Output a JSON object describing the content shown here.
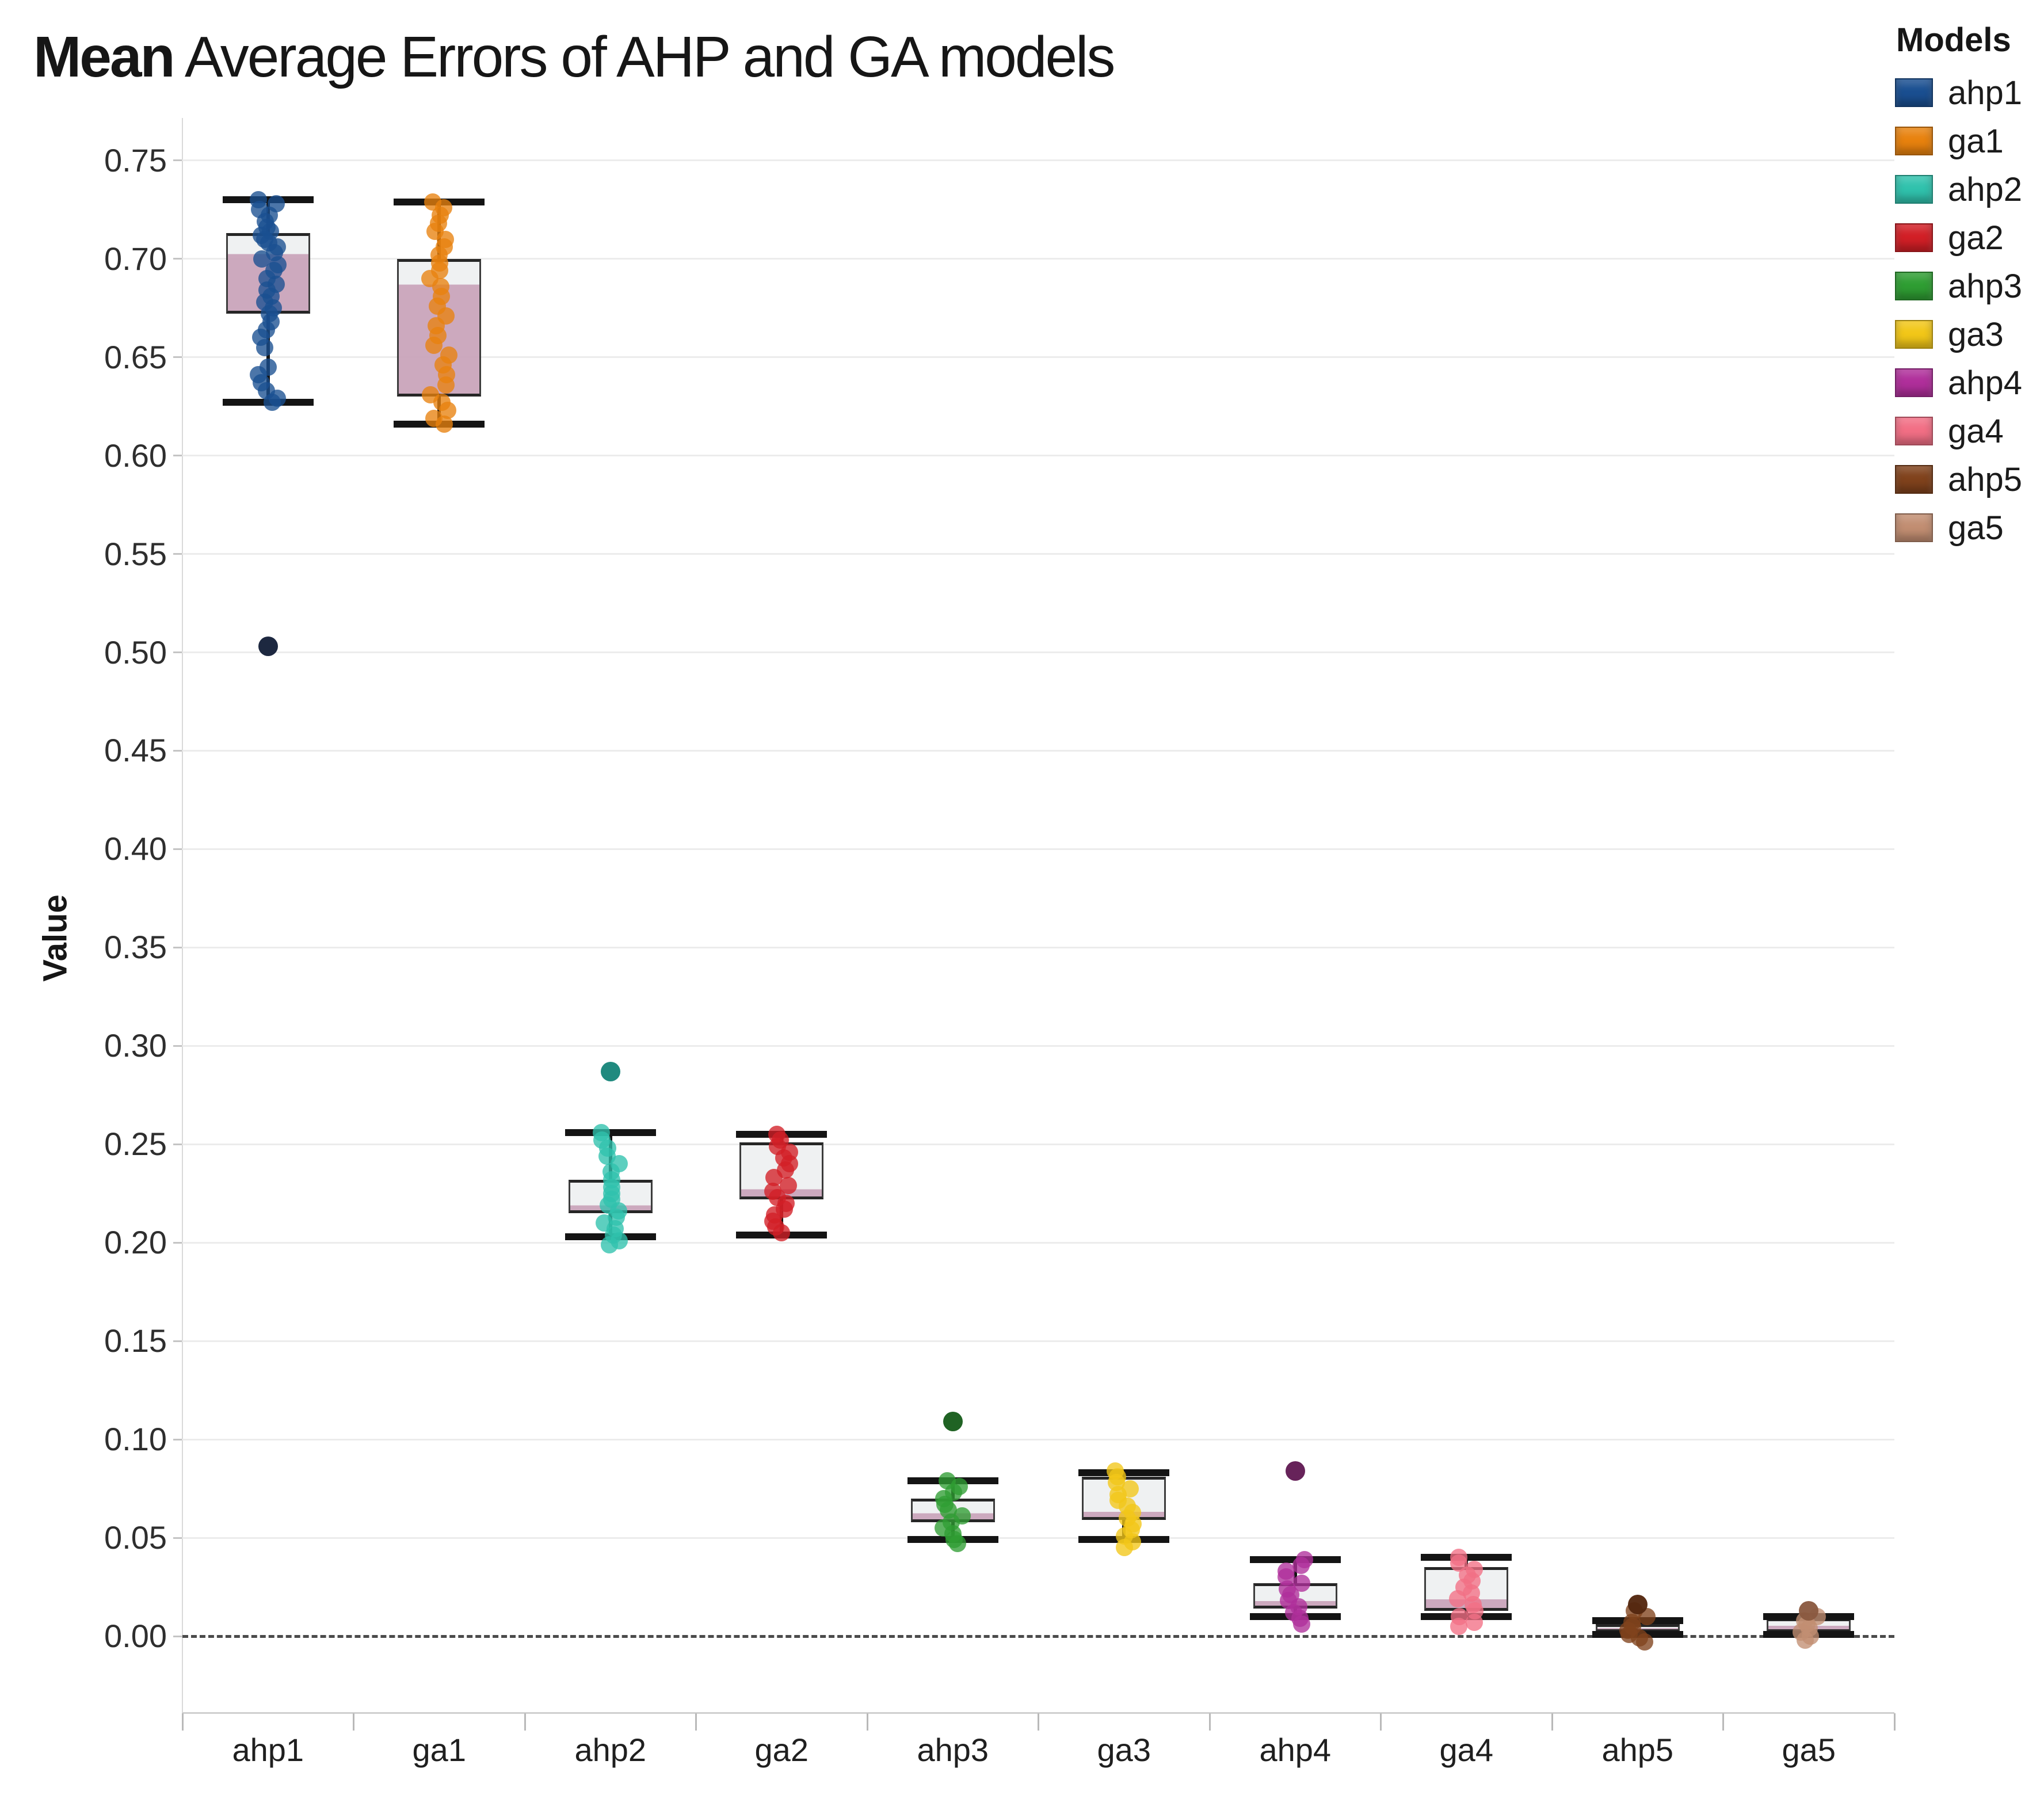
{
  "title": {
    "lead": "Mean",
    "rest": " Average Errors of AHP and GA models"
  },
  "y_axis": {
    "label": "Value",
    "ticks": [
      "0.00",
      "0.05",
      "0.10",
      "0.15",
      "0.20",
      "0.25",
      "0.30",
      "0.35",
      "0.40",
      "0.45",
      "0.50",
      "0.55",
      "0.60",
      "0.65",
      "0.70",
      "0.75"
    ]
  },
  "legend": {
    "title": "Models",
    "items": [
      {
        "label": "ahp1",
        "color": "#1a4f91"
      },
      {
        "label": "ga1",
        "color": "#e8820e"
      },
      {
        "label": "ahp2",
        "color": "#30c2ad"
      },
      {
        "label": "ga2",
        "color": "#d21f26"
      },
      {
        "label": "ahp3",
        "color": "#2f9e33"
      },
      {
        "label": "ga3",
        "color": "#f2c718"
      },
      {
        "label": "ahp4",
        "color": "#b02f9b"
      },
      {
        "label": "ga4",
        "color": "#f26f85"
      },
      {
        "label": "ahp5",
        "color": "#80421c"
      },
      {
        "label": "ga5",
        "color": "#c28e72"
      }
    ]
  },
  "chart_data": {
    "type": "box",
    "title": "Mean Average Errors of AHP and GA models",
    "ylabel": "Value",
    "ylim": [
      -0.04,
      0.77
    ],
    "grid_step": 0.05,
    "zero_line_value": 0.0,
    "legend_position": "top-right",
    "box_fill_upper": "#eef0f2",
    "box_fill_lower": "#c9a3ba",
    "categories": [
      "ahp1",
      "ga1",
      "ahp2",
      "ga2",
      "ahp3",
      "ga3",
      "ahp4",
      "ga4",
      "ahp5",
      "ga5"
    ],
    "series": [
      {
        "name": "ahp1",
        "color": "#1a4f91",
        "dark": "#141f38",
        "whisker_low": 0.627,
        "q1": 0.672,
        "median": 0.703,
        "q3": 0.713,
        "whisker_high": 0.73,
        "outliers": [
          0.503
        ],
        "points": [
          0.73,
          0.728,
          0.725,
          0.722,
          0.719,
          0.716,
          0.714,
          0.712,
          0.71,
          0.708,
          0.706,
          0.703,
          0.7,
          0.697,
          0.694,
          0.69,
          0.687,
          0.684,
          0.681,
          0.678,
          0.675,
          0.672,
          0.668,
          0.664,
          0.66,
          0.655,
          0.645,
          0.641,
          0.637,
          0.633,
          0.629,
          0.627
        ]
      },
      {
        "name": "ga1",
        "color": "#e8820e",
        "dark": "#8f4d06",
        "whisker_low": 0.616,
        "q1": 0.63,
        "median": 0.688,
        "q3": 0.7,
        "whisker_high": 0.729,
        "outliers": [],
        "points": [
          0.729,
          0.726,
          0.722,
          0.718,
          0.714,
          0.71,
          0.706,
          0.702,
          0.698,
          0.694,
          0.69,
          0.686,
          0.681,
          0.676,
          0.671,
          0.666,
          0.661,
          0.656,
          0.651,
          0.646,
          0.641,
          0.636,
          0.631,
          0.627,
          0.623,
          0.619,
          0.616
        ]
      },
      {
        "name": "ahp2",
        "color": "#30c2ad",
        "dark": "#17857a",
        "whisker_low": 0.203,
        "q1": 0.215,
        "median": 0.218,
        "q3": 0.232,
        "whisker_high": 0.256,
        "outliers": [
          0.287
        ],
        "points": [
          0.256,
          0.252,
          0.248,
          0.244,
          0.24,
          0.236,
          0.232,
          0.228,
          0.225,
          0.222,
          0.219,
          0.216,
          0.213,
          0.21,
          0.207,
          0.204,
          0.201,
          0.199
        ]
      },
      {
        "name": "ga2",
        "color": "#d21f26",
        "dark": "#7e1216",
        "whisker_low": 0.204,
        "q1": 0.222,
        "median": 0.226,
        "q3": 0.251,
        "whisker_high": 0.255,
        "outliers": [],
        "points": [
          0.255,
          0.252,
          0.249,
          0.246,
          0.243,
          0.24,
          0.237,
          0.233,
          0.229,
          0.226,
          0.223,
          0.22,
          0.217,
          0.214,
          0.211,
          0.208,
          0.205
        ]
      },
      {
        "name": "ahp3",
        "color": "#2f9e33",
        "dark": "#175d1b",
        "whisker_low": 0.049,
        "q1": 0.058,
        "median": 0.062,
        "q3": 0.07,
        "whisker_high": 0.079,
        "outliers": [
          0.109
        ],
        "points": [
          0.079,
          0.076,
          0.073,
          0.07,
          0.067,
          0.064,
          0.061,
          0.058,
          0.055,
          0.052,
          0.049,
          0.047
        ]
      },
      {
        "name": "ga3",
        "color": "#f2c718",
        "dark": "#9c7e0a",
        "whisker_low": 0.049,
        "q1": 0.059,
        "median": 0.062,
        "q3": 0.081,
        "whisker_high": 0.083,
        "outliers": [],
        "points": [
          0.084,
          0.081,
          0.078,
          0.075,
          0.072,
          0.069,
          0.066,
          0.063,
          0.06,
          0.057,
          0.054,
          0.051,
          0.048,
          0.045
        ]
      },
      {
        "name": "ahp4",
        "color": "#b02f9b",
        "dark": "#611a53",
        "whisker_low": 0.01,
        "q1": 0.014,
        "median": 0.017,
        "q3": 0.027,
        "whisker_high": 0.039,
        "outliers": [
          0.084
        ],
        "points": [
          0.039,
          0.036,
          0.033,
          0.03,
          0.027,
          0.024,
          0.021,
          0.018,
          0.015,
          0.012,
          0.009,
          0.006
        ]
      },
      {
        "name": "ga4",
        "color": "#f26f85",
        "dark": "#a63e4f",
        "whisker_low": 0.01,
        "q1": 0.013,
        "median": 0.018,
        "q3": 0.035,
        "whisker_high": 0.04,
        "outliers": [],
        "points": [
          0.04,
          0.037,
          0.034,
          0.031,
          0.028,
          0.025,
          0.022,
          0.019,
          0.016,
          0.013,
          0.01,
          0.007,
          0.005
        ]
      },
      {
        "name": "ahp5",
        "color": "#80421c",
        "dark": "#53270f",
        "whisker_low": 0.001,
        "q1": 0.002,
        "median": 0.004,
        "q3": 0.006,
        "whisker_high": 0.008,
        "outliers": [
          0.016
        ],
        "points": [
          0.013,
          0.01,
          0.007,
          0.005,
          0.003,
          0.001,
          -0.001,
          -0.003
        ]
      },
      {
        "name": "ga5",
        "color": "#c28e72",
        "dark": "#8a5a41",
        "whisker_low": 0.001,
        "q1": 0.002,
        "median": 0.005,
        "q3": 0.009,
        "whisker_high": 0.01,
        "outliers": [
          0.013
        ],
        "points": [
          0.01,
          0.008,
          0.006,
          0.004,
          0.002,
          0.0,
          -0.002
        ]
      }
    ]
  }
}
